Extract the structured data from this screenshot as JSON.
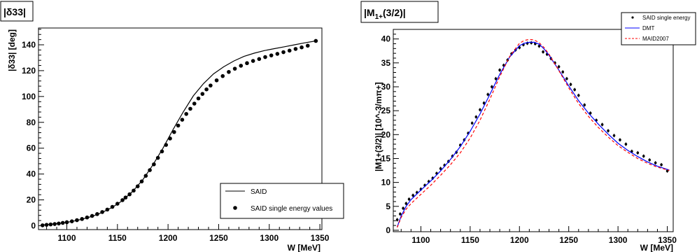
{
  "chart_data": [
    {
      "type": "scatter",
      "title": "|δ33|",
      "xlabel": "W [MeV]",
      "ylabel": "|δ33| [deg]",
      "xlim": [
        1072,
        1352
      ],
      "ylim": [
        -3,
        153
      ],
      "xticks": [
        1100,
        1150,
        1200,
        1250,
        1300,
        1350
      ],
      "yticks": [
        0,
        20,
        40,
        60,
        80,
        100,
        120,
        140
      ],
      "grid": false,
      "legend_position": "bottom-right",
      "series": [
        {
          "name": "SAID",
          "kind": "line",
          "color": "#000000",
          "x": [
            1076,
            1085,
            1095,
            1105,
            1115,
            1125,
            1135,
            1145,
            1155,
            1165,
            1175,
            1185,
            1195,
            1205,
            1215,
            1225,
            1235,
            1245,
            1255,
            1265,
            1275,
            1285,
            1295,
            1305,
            1315,
            1325,
            1335,
            1346
          ],
          "y": [
            0.5,
            1.2,
            2.0,
            3.3,
            5.0,
            7.3,
            10.3,
            14.3,
            19.5,
            26.5,
            35.5,
            47.0,
            60.0,
            74.5,
            88.0,
            100.5,
            110.0,
            117.5,
            123.0,
            127.5,
            131.0,
            133.5,
            135.5,
            137.0,
            138.5,
            140.0,
            141.5,
            143.0
          ]
        },
        {
          "name": "SAID single energy values",
          "kind": "points",
          "color": "#000000",
          "x": [
            1076,
            1080,
            1084,
            1088,
            1092,
            1096,
            1100,
            1105,
            1110,
            1115,
            1120,
            1125,
            1130,
            1135,
            1140,
            1145,
            1150,
            1155,
            1158,
            1162,
            1166,
            1170,
            1174,
            1178,
            1182,
            1186,
            1190,
            1194,
            1198,
            1202,
            1206,
            1210,
            1214,
            1218,
            1222,
            1226,
            1230,
            1234,
            1238,
            1242,
            1248,
            1254,
            1260,
            1266,
            1272,
            1278,
            1284,
            1290,
            1296,
            1302,
            1308,
            1314,
            1320,
            1326,
            1332,
            1338,
            1346
          ],
          "y": [
            0.3,
            0.7,
            1.0,
            1.3,
            1.7,
            2.2,
            2.7,
            3.4,
            4.3,
            5.2,
            6.4,
            7.6,
            9.0,
            10.6,
            12.5,
            14.6,
            17.0,
            19.8,
            21.8,
            24.3,
            27.2,
            30.5,
            34.3,
            38.6,
            43.0,
            47.5,
            52.5,
            57.5,
            62.5,
            67.5,
            72.5,
            77.5,
            82.0,
            86.5,
            90.5,
            94.5,
            98.5,
            102.0,
            105.5,
            108.5,
            112.5,
            115.8,
            119.0,
            121.5,
            123.8,
            125.8,
            127.5,
            129.0,
            130.5,
            131.8,
            133.0,
            134.3,
            135.5,
            136.8,
            138.0,
            139.3,
            143.0
          ]
        }
      ]
    },
    {
      "type": "scatter",
      "title": "|M1+(3/2)|",
      "title_main": "|M",
      "title_sub": "1+",
      "title_rest": "(3/2)|",
      "xlabel": "W [MeV]",
      "ylabel": "|M1+(3/2)| [10^-3/mπ+]",
      "xlim": [
        1072,
        1356
      ],
      "ylim": [
        -0.3,
        42
      ],
      "xticks": [
        1100,
        1150,
        1200,
        1250,
        1300,
        1350
      ],
      "yticks": [
        0,
        5,
        10,
        15,
        20,
        25,
        30,
        35,
        40
      ],
      "grid": false,
      "legend_position": "top-right",
      "series": [
        {
          "name": "SAID single energy",
          "kind": "points",
          "color": "#000000",
          "x": [
            1076,
            1079,
            1082,
            1085,
            1088,
            1092,
            1096,
            1100,
            1104,
            1108,
            1112,
            1116,
            1120,
            1124,
            1128,
            1132,
            1136,
            1140,
            1144,
            1148,
            1152,
            1156,
            1160,
            1164,
            1168,
            1172,
            1176,
            1180,
            1184,
            1188,
            1192,
            1196,
            1200,
            1204,
            1208,
            1212,
            1216,
            1220,
            1224,
            1228,
            1232,
            1236,
            1240,
            1244,
            1248,
            1252,
            1256,
            1260,
            1266,
            1272,
            1278,
            1284,
            1290,
            1296,
            1302,
            1308,
            1314,
            1320,
            1326,
            1332,
            1338,
            1344,
            1350
          ],
          "y": [
            2.2,
            3.4,
            4.6,
            5.6,
            6.5,
            7.3,
            7.9,
            8.6,
            9.4,
            10.2,
            10.9,
            11.9,
            12.9,
            13.6,
            14.4,
            15.5,
            16.3,
            17.8,
            18.9,
            20.3,
            22.4,
            23.7,
            25.2,
            26.6,
            28.4,
            30.0,
            31.7,
            33.5,
            34.5,
            35.6,
            36.9,
            37.7,
            38.2,
            38.8,
            39.1,
            39.2,
            39.0,
            38.5,
            37.3,
            36.8,
            35.9,
            35.0,
            34.2,
            33.1,
            31.7,
            30.5,
            29.4,
            28.2,
            26.2,
            24.5,
            23.0,
            22.1,
            20.8,
            19.8,
            18.9,
            18.0,
            16.5,
            16.2,
            15.5,
            14.7,
            14.1,
            13.7,
            12.4
          ]
        },
        {
          "name": "DMT",
          "kind": "line",
          "color": "#0000ff",
          "x": [
            1076,
            1080,
            1085,
            1090,
            1100,
            1110,
            1120,
            1130,
            1140,
            1150,
            1160,
            1170,
            1180,
            1190,
            1200,
            1205,
            1210,
            1215,
            1220,
            1225,
            1230,
            1240,
            1250,
            1260,
            1270,
            1280,
            1290,
            1300,
            1310,
            1320,
            1330,
            1340,
            1352
          ],
          "y": [
            0.7,
            3.0,
            5.0,
            6.4,
            8.4,
            10.3,
            12.4,
            14.8,
            17.5,
            20.7,
            24.3,
            28.4,
            32.6,
            36.2,
            38.6,
            39.1,
            39.3,
            39.3,
            38.9,
            37.9,
            36.6,
            33.5,
            30.2,
            27.1,
            24.5,
            22.2,
            20.1,
            18.2,
            16.7,
            15.4,
            14.3,
            13.4,
            12.6
          ]
        },
        {
          "name": "MAID2007",
          "kind": "dashed",
          "color": "#ff0000",
          "x": [
            1076,
            1080,
            1085,
            1090,
            1100,
            1110,
            1120,
            1130,
            1140,
            1150,
            1160,
            1170,
            1180,
            1190,
            1200,
            1205,
            1210,
            1215,
            1220,
            1225,
            1230,
            1240,
            1250,
            1260,
            1270,
            1280,
            1290,
            1300,
            1310,
            1320,
            1330,
            1340,
            1352
          ],
          "y": [
            0.6,
            2.7,
            4.4,
            5.6,
            7.5,
            9.4,
            11.5,
            13.7,
            16.2,
            19.3,
            23.0,
            27.4,
            32.1,
            36.3,
            39.1,
            39.7,
            39.9,
            39.8,
            39.2,
            38.2,
            36.8,
            33.4,
            29.8,
            26.5,
            23.8,
            21.5,
            19.5,
            17.7,
            16.3,
            15.0,
            14.0,
            13.2,
            12.5
          ]
        }
      ]
    }
  ]
}
